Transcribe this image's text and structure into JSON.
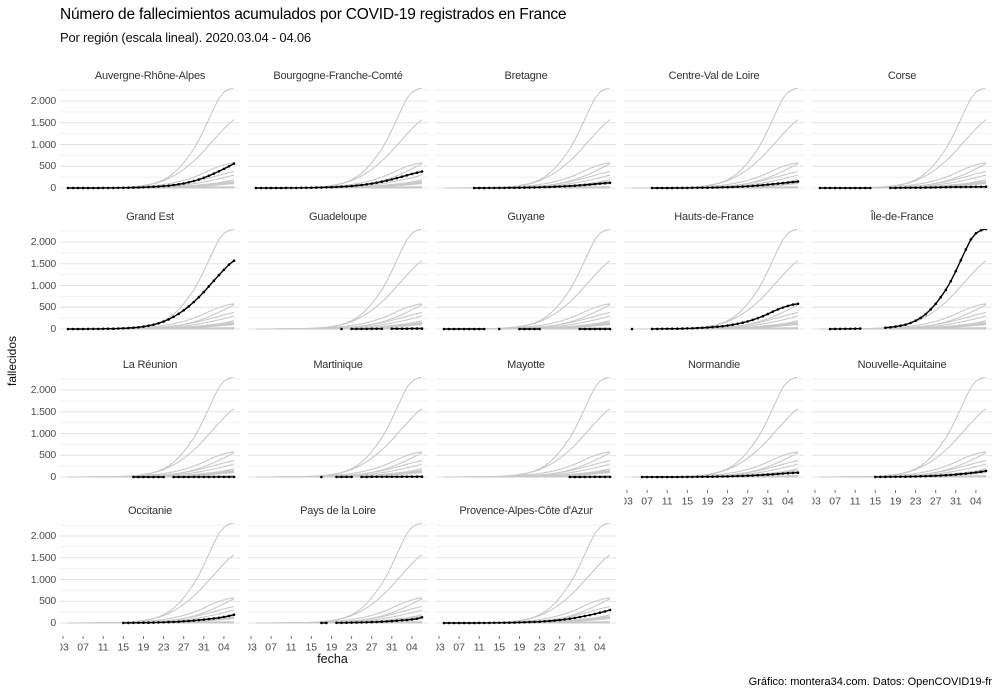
{
  "header": {
    "title": "Número de fallecimientos acumulados por COVID-19 registrados en France",
    "subtitle": "Por región (escala lineal). 2020.03.04 - 04.06"
  },
  "caption": "Gráfico: montera34.com. Datos: OpenCOVID19-fr",
  "chart_data": {
    "type": "line",
    "title": "Número de fallecimientos acumulados por COVID-19 registrados en France",
    "subtitle": "Por región (escala lineal). 2020.03.04 - 04.06",
    "xlabel": "fecha",
    "ylabel": "fallecidos",
    "date_range": {
      "start": "2020.03.04",
      "end": "04.06"
    },
    "x_tick_labels": [
      "03",
      "07",
      "11",
      "15",
      "19",
      "23",
      "27",
      "31",
      "04"
    ],
    "x_tick_days": [
      -1,
      3,
      7,
      11,
      15,
      19,
      23,
      27,
      31
    ],
    "x_range_days": [
      0,
      33
    ],
    "y_ticks": [
      0,
      500,
      1000,
      1500,
      2000
    ],
    "y_tick_labels": [
      "0",
      "500",
      "1.000",
      "1.500",
      "2.000"
    ],
    "y_minor_ticks": [
      250,
      750,
      1250,
      1750,
      2250
    ],
    "ylim": [
      0,
      2300
    ],
    "grid": "horizontal-only",
    "legend_position": "none",
    "facet_layout": {
      "columns": 5,
      "rows": 4
    },
    "colors": {
      "highlight_line": "#000000",
      "context_line": "#c9c9c9",
      "grid_major": "#e4e4e4",
      "grid_minor": "#f2f2f2",
      "strip_text": "#333333",
      "axis_text": "#4d4d4d"
    },
    "x_axis_facets": [
      13,
      14,
      15,
      16,
      17
    ],
    "y_axis_facets": [
      0,
      5,
      10,
      15
    ],
    "series": [
      {
        "name": "Auvergne-Rhône-Alpes",
        "values": [
          0,
          0,
          0,
          0,
          1,
          1,
          1,
          2,
          2,
          3,
          4,
          5,
          7,
          9,
          12,
          16,
          21,
          27,
          34,
          43,
          54,
          68,
          85,
          105,
          130,
          160,
          195,
          235,
          280,
          330,
          385,
          440,
          500,
          560
        ]
      },
      {
        "name": "Bourgogne-Franche-Comté",
        "values": [
          0,
          0,
          0,
          1,
          1,
          1,
          2,
          2,
          3,
          4,
          5,
          7,
          9,
          12,
          15,
          19,
          24,
          30,
          37,
          46,
          57,
          70,
          85,
          102,
          122,
          145,
          170,
          198,
          228,
          260,
          292,
          323,
          352,
          380
        ]
      },
      {
        "name": "Bretagne",
        "values": [
          null,
          null,
          null,
          null,
          null,
          null,
          1,
          1,
          1,
          2,
          2,
          3,
          3,
          4,
          5,
          7,
          9,
          11,
          13,
          16,
          20,
          24,
          29,
          34,
          40,
          47,
          54,
          62,
          71,
          81,
          91,
          101,
          110,
          120
        ]
      },
      {
        "name": "Centre-Val de Loire",
        "values": [
          null,
          null,
          null,
          null,
          0,
          0,
          1,
          1,
          1,
          2,
          2,
          3,
          4,
          5,
          6,
          8,
          10,
          12,
          15,
          18,
          22,
          27,
          33,
          40,
          48,
          57,
          67,
          78,
          89,
          101,
          113,
          126,
          138,
          150
        ]
      },
      {
        "name": "Corse",
        "values": [
          0,
          0,
          0,
          0,
          0,
          0,
          1,
          1,
          1,
          1,
          1,
          null,
          null,
          null,
          3,
          3,
          4,
          5,
          6,
          7,
          8,
          10,
          12,
          14,
          16,
          18,
          20,
          22,
          24,
          25,
          26,
          27,
          28,
          30
        ]
      },
      {
        "name": "Grand Est",
        "values": [
          0,
          0,
          1,
          1,
          2,
          2,
          3,
          4,
          6,
          8,
          11,
          15,
          21,
          29,
          40,
          55,
          75,
          100,
          130,
          170,
          220,
          280,
          350,
          430,
          520,
          620,
          730,
          850,
          980,
          1110,
          1240,
          1360,
          1480,
          1570
        ]
      },
      {
        "name": "Guadeloupe",
        "values": [
          null,
          null,
          null,
          null,
          null,
          null,
          null,
          null,
          null,
          null,
          null,
          null,
          null,
          null,
          null,
          null,
          null,
          1,
          null,
          2,
          2,
          3,
          3,
          4,
          4,
          5,
          null,
          6,
          7,
          8,
          8,
          9,
          9,
          10
        ]
      },
      {
        "name": "Guyane",
        "values": [
          0,
          0,
          0,
          0,
          0,
          0,
          0,
          0,
          0,
          null,
          null,
          1,
          null,
          null,
          null,
          1,
          1,
          1,
          1,
          1,
          null,
          null,
          null,
          null,
          null,
          null,
          null,
          1,
          1,
          1,
          1,
          1,
          1,
          1
        ]
      },
      {
        "name": "Hauts-de-France",
        "values": [
          1,
          null,
          null,
          null,
          2,
          3,
          4,
          5,
          6,
          8,
          10,
          13,
          17,
          22,
          28,
          35,
          43,
          53,
          65,
          80,
          98,
          120,
          145,
          175,
          210,
          250,
          295,
          345,
          400,
          450,
          495,
          530,
          560,
          580
        ]
      },
      {
        "name": "Île-de-France",
        "values": [
          null,
          null,
          1,
          2,
          3,
          4,
          5,
          7,
          9,
          null,
          null,
          null,
          null,
          30,
          40,
          55,
          75,
          100,
          140,
          190,
          255,
          340,
          450,
          580,
          730,
          900,
          1100,
          1330,
          1580,
          1830,
          2060,
          2200,
          2270,
          2300
        ]
      },
      {
        "name": "La Réunion",
        "values": [
          null,
          null,
          null,
          null,
          null,
          null,
          null,
          null,
          null,
          null,
          null,
          null,
          null,
          0,
          0,
          1,
          1,
          1,
          1,
          1,
          null,
          1,
          1,
          1,
          1,
          2,
          2,
          2,
          2,
          2,
          2,
          2,
          2,
          2
        ]
      },
      {
        "name": "Martinique",
        "values": [
          null,
          null,
          null,
          null,
          null,
          null,
          null,
          null,
          null,
          null,
          null,
          null,
          null,
          1,
          null,
          null,
          2,
          2,
          2,
          2,
          null,
          3,
          3,
          4,
          4,
          4,
          5,
          5,
          5,
          6,
          6,
          6,
          6,
          6
        ]
      },
      {
        "name": "Mayotte",
        "values": [
          null,
          null,
          null,
          null,
          null,
          null,
          null,
          null,
          null,
          null,
          null,
          null,
          null,
          null,
          null,
          null,
          null,
          null,
          null,
          null,
          null,
          null,
          null,
          null,
          null,
          1,
          1,
          1,
          2,
          2,
          2,
          2,
          2,
          2
        ]
      },
      {
        "name": "Normandie",
        "values": [
          null,
          null,
          0,
          0,
          0,
          0,
          0,
          1,
          1,
          1,
          2,
          2,
          3,
          4,
          5,
          6,
          7,
          9,
          11,
          14,
          17,
          21,
          25,
          30,
          35,
          41,
          48,
          55,
          63,
          71,
          80,
          88,
          94,
          100
        ]
      },
      {
        "name": "Nouvelle-Aquitaine",
        "values": [
          null,
          null,
          null,
          null,
          null,
          null,
          null,
          null,
          null,
          null,
          null,
          2,
          2,
          3,
          4,
          5,
          6,
          8,
          10,
          12,
          15,
          19,
          23,
          28,
          34,
          41,
          49,
          58,
          68,
          78,
          90,
          103,
          120,
          140
        ]
      },
      {
        "name": "Occitanie",
        "values": [
          null,
          null,
          null,
          null,
          null,
          null,
          null,
          null,
          null,
          null,
          null,
          2,
          3,
          4,
          5,
          6,
          8,
          10,
          13,
          16,
          20,
          25,
          31,
          38,
          46,
          55,
          66,
          78,
          91,
          105,
          120,
          140,
          163,
          190
        ]
      },
      {
        "name": "Pays de la Loire",
        "values": [
          null,
          null,
          null,
          null,
          null,
          null,
          null,
          null,
          null,
          null,
          null,
          null,
          null,
          2,
          2,
          null,
          4,
          5,
          7,
          9,
          11,
          14,
          17,
          21,
          26,
          31,
          37,
          44,
          52,
          61,
          70,
          82,
          96,
          130
        ]
      },
      {
        "name": "Provence-Alpes-Côte d'Azur",
        "values": [
          0,
          0,
          0,
          0,
          1,
          1,
          1,
          2,
          2,
          3,
          4,
          5,
          6,
          8,
          10,
          13,
          16,
          20,
          25,
          31,
          38,
          47,
          57,
          69,
          83,
          99,
          117,
          137,
          159,
          183,
          209,
          237,
          267,
          300
        ]
      }
    ]
  }
}
